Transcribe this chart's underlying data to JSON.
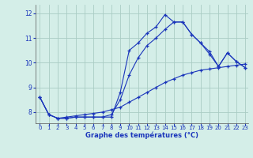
{
  "xlabel": "Graphe des températures (°C)",
  "background_color": "#d4eee8",
  "grid_color": "#aaccc4",
  "line_color": "#1a35bb",
  "xlim": [
    -0.5,
    23.3
  ],
  "ylim": [
    7.55,
    12.35
  ],
  "yticks": [
    8,
    9,
    10,
    11,
    12
  ],
  "xticks": [
    0,
    1,
    2,
    3,
    4,
    5,
    6,
    7,
    8,
    9,
    10,
    11,
    12,
    13,
    14,
    15,
    16,
    17,
    18,
    19,
    20,
    21,
    22,
    23
  ],
  "series1_x": [
    0,
    1,
    2,
    3,
    4,
    5,
    6,
    7,
    8,
    9,
    10,
    11,
    12,
    13,
    14,
    15,
    16,
    17,
    18,
    19,
    20,
    21,
    22,
    23
  ],
  "series1_y": [
    8.6,
    7.9,
    7.75,
    7.75,
    7.8,
    7.8,
    7.8,
    7.8,
    7.8,
    8.8,
    10.5,
    10.8,
    11.2,
    11.45,
    11.95,
    11.65,
    11.65,
    11.15,
    10.8,
    10.35,
    9.85,
    10.4,
    10.05,
    9.8
  ],
  "series2_x": [
    0,
    1,
    2,
    3,
    4,
    5,
    6,
    7,
    8,
    9,
    10,
    11,
    12,
    13,
    14,
    15,
    16,
    17,
    18,
    19,
    20,
    21,
    22,
    23
  ],
  "series2_y": [
    8.6,
    7.9,
    7.75,
    7.75,
    7.8,
    7.8,
    7.8,
    7.8,
    7.9,
    8.5,
    9.5,
    10.2,
    10.7,
    11.0,
    11.35,
    11.65,
    11.65,
    11.15,
    10.8,
    10.45,
    9.85,
    10.4,
    10.05,
    9.8
  ],
  "series3_x": [
    0,
    1,
    2,
    3,
    4,
    5,
    6,
    7,
    8,
    9,
    10,
    11,
    12,
    13,
    14,
    15,
    16,
    17,
    18,
    19,
    20,
    21,
    22,
    23
  ],
  "series3_y": [
    8.6,
    7.9,
    7.75,
    7.8,
    7.85,
    7.9,
    7.95,
    8.0,
    8.1,
    8.2,
    8.4,
    8.6,
    8.8,
    9.0,
    9.2,
    9.35,
    9.5,
    9.6,
    9.7,
    9.75,
    9.8,
    9.85,
    9.9,
    9.95
  ],
  "figsize": [
    3.2,
    2.0
  ],
  "dpi": 100
}
